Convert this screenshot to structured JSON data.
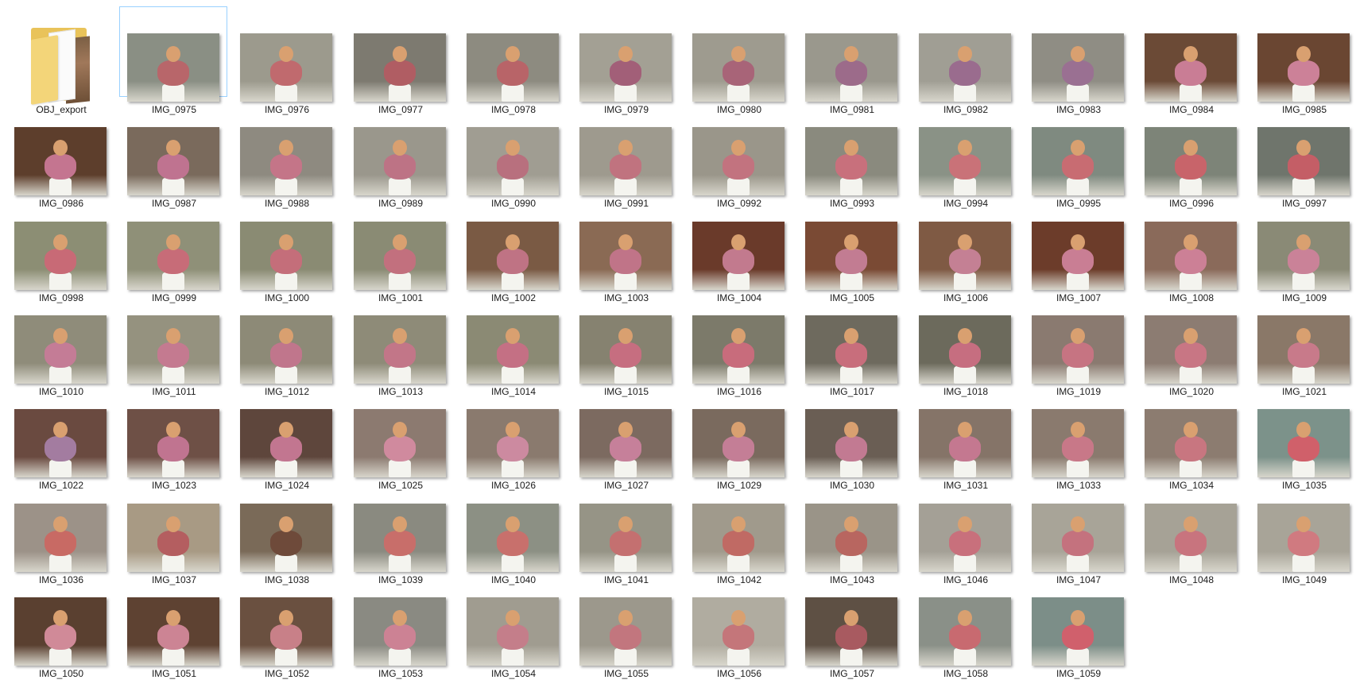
{
  "folder": {
    "label": "OBJ_export",
    "icon": "folder-icon"
  },
  "selected_item": "IMG_0975",
  "files": [
    {
      "name": "IMG_0975",
      "bg": "#8a8f84",
      "skirt": "#b8666a"
    },
    {
      "name": "IMG_0976",
      "bg": "#9c9a8d",
      "skirt": "#c06a6e"
    },
    {
      "name": "IMG_0977",
      "bg": "#7d7a70",
      "skirt": "#b05d63"
    },
    {
      "name": "IMG_0978",
      "bg": "#8d8b80",
      "skirt": "#b86468"
    },
    {
      "name": "IMG_0979",
      "bg": "#a3a094",
      "skirt": "#a25f78"
    },
    {
      "name": "IMG_0980",
      "bg": "#9e9b8f",
      "skirt": "#a86478"
    },
    {
      "name": "IMG_0981",
      "bg": "#9a988d",
      "skirt": "#9c6b8a"
    },
    {
      "name": "IMG_0982",
      "bg": "#a09e94",
      "skirt": "#9a6c8e"
    },
    {
      "name": "IMG_0983",
      "bg": "#8f8d84",
      "skirt": "#9a7092"
    },
    {
      "name": "IMG_0984",
      "bg": "#6b4a36",
      "skirt": "#c97d95"
    },
    {
      "name": "IMG_0985",
      "bg": "#6a4632",
      "skirt": "#cc8198"
    },
    {
      "name": "IMG_0986",
      "bg": "#5d3e2c",
      "skirt": "#c47590"
    },
    {
      "name": "IMG_0987",
      "bg": "#7a6a5c",
      "skirt": "#bf7390"
    },
    {
      "name": "IMG_0988",
      "bg": "#8e8a80",
      "skirt": "#c47588"
    },
    {
      "name": "IMG_0989",
      "bg": "#9a978c",
      "skirt": "#bd7385"
    },
    {
      "name": "IMG_0990",
      "bg": "#a09d92",
      "skirt": "#b8707e"
    },
    {
      "name": "IMG_0991",
      "bg": "#9e9a8e",
      "skirt": "#c0737f"
    },
    {
      "name": "IMG_0992",
      "bg": "#9a968a",
      "skirt": "#c2737f"
    },
    {
      "name": "IMG_0993",
      "bg": "#8a8a7e",
      "skirt": "#c8707c"
    },
    {
      "name": "IMG_0994",
      "bg": "#8a9286",
      "skirt": "#c97278"
    },
    {
      "name": "IMG_0995",
      "bg": "#7f8a80",
      "skirt": "#c86c72"
    },
    {
      "name": "IMG_0996",
      "bg": "#7d8478",
      "skirt": "#c8646a"
    },
    {
      "name": "IMG_0997",
      "bg": "#6f756c",
      "skirt": "#c45e66"
    },
    {
      "name": "IMG_0998",
      "bg": "#8c8e74",
      "skirt": "#c86a76"
    },
    {
      "name": "IMG_0999",
      "bg": "#8f9078",
      "skirt": "#c76c78"
    },
    {
      "name": "IMG_1000",
      "bg": "#8a8b73",
      "skirt": "#c46e7a"
    },
    {
      "name": "IMG_1001",
      "bg": "#8a8b74",
      "skirt": "#c2707e"
    },
    {
      "name": "IMG_1002",
      "bg": "#7a5a44",
      "skirt": "#bf7384"
    },
    {
      "name": "IMG_1003",
      "bg": "#8a6a54",
      "skirt": "#c07488"
    },
    {
      "name": "IMG_1004",
      "bg": "#6a3a2a",
      "skirt": "#c27a8e"
    },
    {
      "name": "IMG_1005",
      "bg": "#7a4a34",
      "skirt": "#c27c92"
    },
    {
      "name": "IMG_1006",
      "bg": "#7f5a44",
      "skirt": "#c48094"
    },
    {
      "name": "IMG_1007",
      "bg": "#6c3c2a",
      "skirt": "#c97e94"
    },
    {
      "name": "IMG_1008",
      "bg": "#8a6a5a",
      "skirt": "#cc8096"
    },
    {
      "name": "IMG_1009",
      "bg": "#8a8a76",
      "skirt": "#ca8298"
    },
    {
      "name": "IMG_1010",
      "bg": "#8f8c7a",
      "skirt": "#c47c96"
    },
    {
      "name": "IMG_1011",
      "bg": "#95927f",
      "skirt": "#c47a90"
    },
    {
      "name": "IMG_1012",
      "bg": "#8d8a77",
      "skirt": "#c0768c"
    },
    {
      "name": "IMG_1013",
      "bg": "#8e8b78",
      "skirt": "#c27688"
    },
    {
      "name": "IMG_1014",
      "bg": "#8b8a74",
      "skirt": "#c47084"
    },
    {
      "name": "IMG_1015",
      "bg": "#868270",
      "skirt": "#c66e80"
    },
    {
      "name": "IMG_1016",
      "bg": "#7c7a6a",
      "skirt": "#c86c7c"
    },
    {
      "name": "IMG_1017",
      "bg": "#6e6a5e",
      "skirt": "#c86e7c"
    },
    {
      "name": "IMG_1018",
      "bg": "#6c6a5c",
      "skirt": "#c66e80"
    },
    {
      "name": "IMG_1019",
      "bg": "#8a7a70",
      "skirt": "#c67482"
    },
    {
      "name": "IMG_1020",
      "bg": "#8c7c72",
      "skirt": "#c87684"
    },
    {
      "name": "IMG_1021",
      "bg": "#8a7868",
      "skirt": "#c87a8a"
    },
    {
      "name": "IMG_1022",
      "bg": "#6a4a40",
      "skirt": "#a37ca0"
    },
    {
      "name": "IMG_1023",
      "bg": "#6e5046",
      "skirt": "#c07490"
    },
    {
      "name": "IMG_1024",
      "bg": "#5e463c",
      "skirt": "#c27690"
    },
    {
      "name": "IMG_1025",
      "bg": "#8c7a70",
      "skirt": "#d08a9e"
    },
    {
      "name": "IMG_1026",
      "bg": "#8a7a6e",
      "skirt": "#cc8aa0"
    },
    {
      "name": "IMG_1027",
      "bg": "#7c6a60",
      "skirt": "#c6809a"
    },
    {
      "name": "IMG_1029",
      "bg": "#7a6a5e",
      "skirt": "#c47e96"
    },
    {
      "name": "IMG_1030",
      "bg": "#6a5e54",
      "skirt": "#c27a92"
    },
    {
      "name": "IMG_1031",
      "bg": "#857468",
      "skirt": "#c47890"
    },
    {
      "name": "IMG_1033",
      "bg": "#8a7a6e",
      "skirt": "#c87888"
    },
    {
      "name": "IMG_1034",
      "bg": "#8c7c70",
      "skirt": "#c87680"
    },
    {
      "name": "IMG_1035",
      "bg": "#7c928a",
      "skirt": "#d0606a"
    },
    {
      "name": "IMG_1036",
      "bg": "#9c9288",
      "skirt": "#c86a64"
    },
    {
      "name": "IMG_1037",
      "bg": "#a89a84",
      "skirt": "#b45e60"
    },
    {
      "name": "IMG_1038",
      "bg": "#7a6a58",
      "skirt": "#6e4a3a"
    },
    {
      "name": "IMG_1039",
      "bg": "#8a8a80",
      "skirt": "#c86e6a"
    },
    {
      "name": "IMG_1040",
      "bg": "#8c9084",
      "skirt": "#c8706c"
    },
    {
      "name": "IMG_1041",
      "bg": "#969486",
      "skirt": "#c47070"
    },
    {
      "name": "IMG_1042",
      "bg": "#a09a8c",
      "skirt": "#c06a64"
    },
    {
      "name": "IMG_1043",
      "bg": "#9a9488",
      "skirt": "#b86660"
    },
    {
      "name": "IMG_1046",
      "bg": "#a4a096",
      "skirt": "#c8707c"
    },
    {
      "name": "IMG_1047",
      "bg": "#a8a498",
      "skirt": "#c4727e"
    },
    {
      "name": "IMG_1048",
      "bg": "#a6a296",
      "skirt": "#c8747e"
    },
    {
      "name": "IMG_1049",
      "bg": "#a8a498",
      "skirt": "#d07a80"
    },
    {
      "name": "IMG_1050",
      "bg": "#5a4030",
      "skirt": "#d08a98"
    },
    {
      "name": "IMG_1051",
      "bg": "#5e4232",
      "skirt": "#cc8494"
    },
    {
      "name": "IMG_1052",
      "bg": "#6a5040",
      "skirt": "#c88088"
    },
    {
      "name": "IMG_1053",
      "bg": "#8a8a82",
      "skirt": "#cc8294"
    },
    {
      "name": "IMG_1054",
      "bg": "#a09c90",
      "skirt": "#c47e8a"
    },
    {
      "name": "IMG_1055",
      "bg": "#9c988c",
      "skirt": "#c2767e"
    },
    {
      "name": "IMG_1056",
      "bg": "#b0aca0",
      "skirt": "#c4767a"
    },
    {
      "name": "IMG_1057",
      "bg": "#5e5044",
      "skirt": "#a85a60"
    },
    {
      "name": "IMG_1058",
      "bg": "#8a9088",
      "skirt": "#c86a70"
    },
    {
      "name": "IMG_1059",
      "bg": "#7c8e88",
      "skirt": "#d0606c"
    }
  ]
}
